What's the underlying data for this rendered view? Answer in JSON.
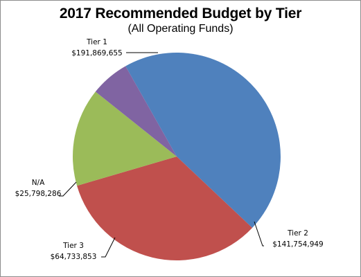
{
  "chart_data": {
    "type": "pie",
    "title": "2017 Recommended Budget by Tier",
    "subtitle": "(All Operating Funds)",
    "slices": [
      {
        "label": "Tier 1",
        "value_label": "$191,869,655",
        "value": 191869655,
        "color": "#4f81bd"
      },
      {
        "label": "Tier 2",
        "value_label": "$141,754,949",
        "value": 141754949,
        "color": "#c0504d"
      },
      {
        "label": "Tier 3",
        "value_label": "$64,733,853",
        "value": 64733853,
        "color": "#9bbb59"
      },
      {
        "label": "N/A",
        "value_label": "$25,798,286",
        "value": 25798286,
        "color": "#8064a2"
      }
    ],
    "legend": "none"
  }
}
